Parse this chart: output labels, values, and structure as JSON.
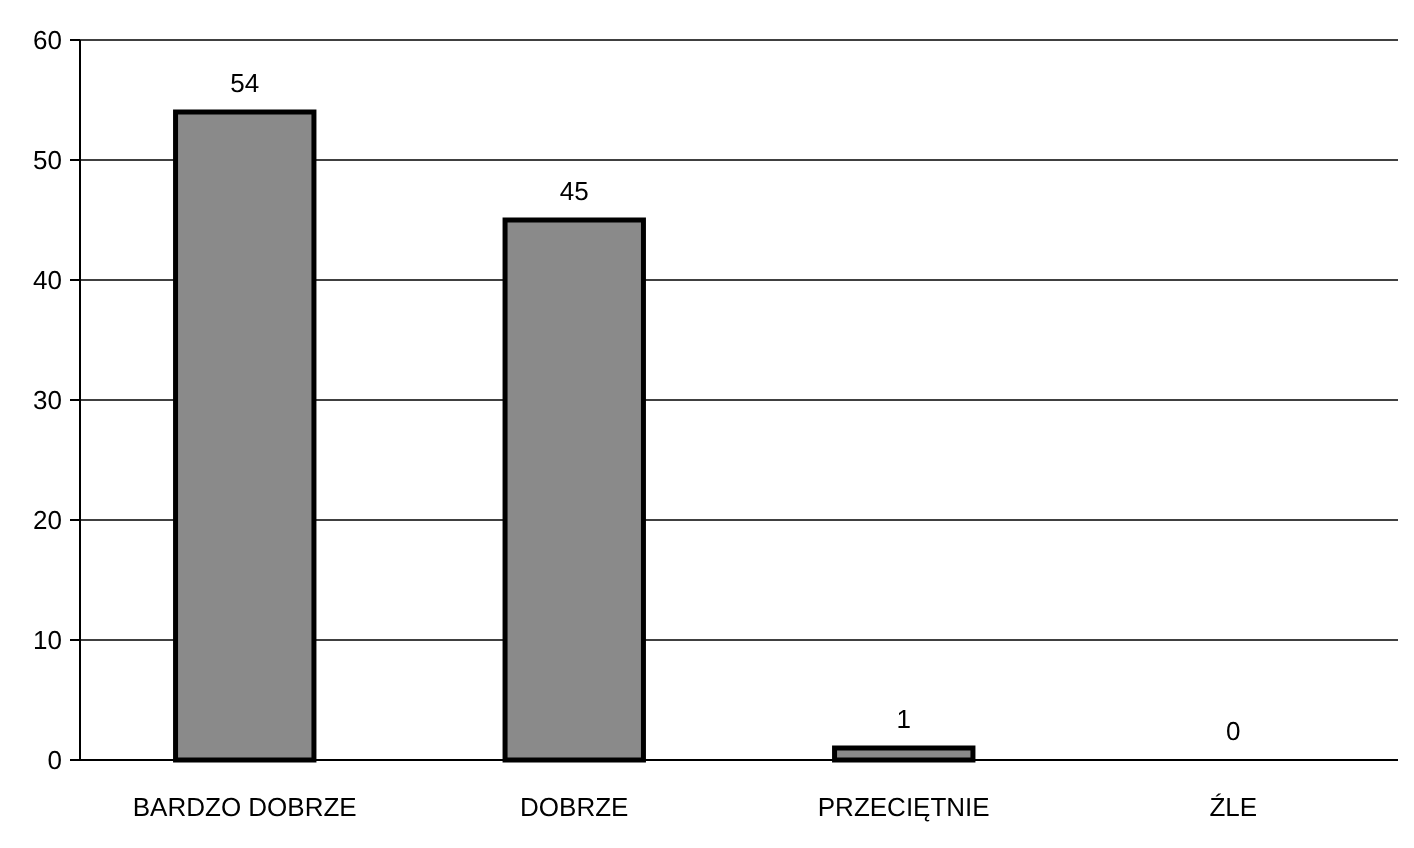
{
  "chart_data": {
    "type": "bar",
    "categories": [
      "BARDZO DOBRZE",
      "DOBRZE",
      "PRZECIĘTNIE",
      "ŹLE"
    ],
    "values": [
      54,
      45,
      1,
      0
    ],
    "color": "#8a8a8a",
    "ylim": [
      0,
      60
    ],
    "yticks": [
      0,
      10,
      20,
      30,
      40,
      50,
      60
    ],
    "grid": "y",
    "data_labels": true
  }
}
